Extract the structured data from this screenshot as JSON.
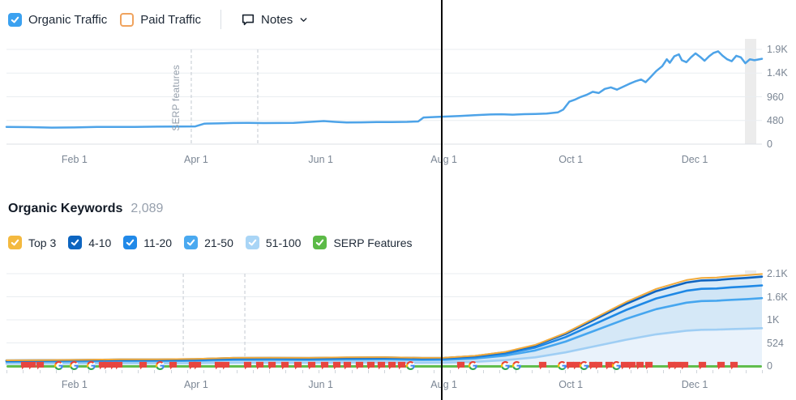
{
  "header_legend": {
    "organic_traffic": {
      "label": "Organic Traffic",
      "color": "#3ba1f0",
      "checked": true
    },
    "paid_traffic": {
      "label": "Paid Traffic",
      "color": "#f0a35e",
      "checked": false
    },
    "notes": {
      "label": "Notes"
    }
  },
  "keywords_header": {
    "title": "Organic Keywords",
    "count": "2,089"
  },
  "keywords_legend": {
    "items": [
      {
        "label": "Top 3",
        "color": "#f4b93f",
        "checked": true
      },
      {
        "label": "4-10",
        "color": "#0d65c1",
        "checked": true
      },
      {
        "label": "11-20",
        "color": "#2189e8",
        "checked": true
      },
      {
        "label": "21-50",
        "color": "#4aa9f0",
        "checked": true
      },
      {
        "label": "51-100",
        "color": "#a9d5f6",
        "checked": true
      },
      {
        "label": "SERP Features",
        "color": "#5cba47",
        "checked": true
      }
    ]
  },
  "chart_data": [
    {
      "id": "organic_traffic_trend",
      "type": "line",
      "title": "Organic Traffic",
      "x_ticks": [
        "Feb 1",
        "Apr 1",
        "Jun 1",
        "Aug 1",
        "Oct 1",
        "Dec 1"
      ],
      "y_ticks": [
        "1.9K",
        "1.4K",
        "960",
        "480",
        "0"
      ],
      "ylim": [
        0,
        1920
      ],
      "grid": true,
      "annotations": {
        "serp_features_label": "SERP features"
      },
      "series": [
        {
          "name": "Organic Traffic",
          "color": "#4da3e8",
          "x": [
            0,
            0.03,
            0.06,
            0.09,
            0.12,
            0.15,
            0.17,
            0.2,
            0.23,
            0.25,
            0.262,
            0.28,
            0.3,
            0.32,
            0.34,
            0.36,
            0.38,
            0.4,
            0.42,
            0.435,
            0.45,
            0.47,
            0.49,
            0.51,
            0.53,
            0.545,
            0.552,
            0.57,
            0.58,
            0.6,
            0.62,
            0.64,
            0.655,
            0.67,
            0.685,
            0.7,
            0.715,
            0.73,
            0.737,
            0.745,
            0.752,
            0.76,
            0.768,
            0.776,
            0.784,
            0.792,
            0.8,
            0.808,
            0.816,
            0.824,
            0.832,
            0.84,
            0.846,
            0.852,
            0.86,
            0.868,
            0.874,
            0.878,
            0.884,
            0.89,
            0.894,
            0.9,
            0.906,
            0.912,
            0.918,
            0.924,
            0.93,
            0.936,
            0.942,
            0.948,
            0.954,
            0.96,
            0.966,
            0.972,
            0.978,
            0.984,
            0.99,
            1.0
          ],
          "values": [
            350,
            345,
            335,
            338,
            348,
            350,
            348,
            355,
            358,
            360,
            415,
            420,
            428,
            430,
            426,
            428,
            432,
            450,
            468,
            452,
            438,
            442,
            446,
            448,
            452,
            460,
            540,
            552,
            558,
            570,
            588,
            600,
            606,
            598,
            608,
            612,
            618,
            645,
            700,
            860,
            900,
            955,
            1000,
            1060,
            1035,
            1120,
            1150,
            1105,
            1160,
            1220,
            1270,
            1310,
            1255,
            1350,
            1480,
            1580,
            1720,
            1650,
            1780,
            1820,
            1700,
            1660,
            1760,
            1840,
            1770,
            1690,
            1780,
            1850,
            1880,
            1790,
            1720,
            1680,
            1790,
            1760,
            1640,
            1720,
            1700,
            1730
          ]
        }
      ]
    },
    {
      "id": "organic_keywords_trend",
      "type": "area",
      "stacked": true,
      "title": "Organic Keywords",
      "total": 2089,
      "x_ticks": [
        "Feb 1",
        "Apr 1",
        "Jun 1",
        "Aug 1",
        "Oct 1",
        "Dec 1"
      ],
      "y_ticks": [
        "2.1K",
        "1.6K",
        "1K",
        "524",
        "0"
      ],
      "ylim": [
        0,
        2096
      ],
      "grid": true,
      "x": [
        0,
        0.05,
        0.1,
        0.15,
        0.2,
        0.25,
        0.3,
        0.35,
        0.4,
        0.45,
        0.5,
        0.55,
        0.58,
        0.62,
        0.66,
        0.7,
        0.74,
        0.78,
        0.82,
        0.86,
        0.9,
        0.92,
        0.94,
        0.96,
        0.98,
        1.0
      ],
      "series": [
        {
          "name": "Top 3",
          "color": "#f2ab3c",
          "fill": "#ddeefa",
          "values": [
            4,
            4,
            4,
            4,
            4,
            5,
            5,
            6,
            5,
            6,
            6,
            5,
            6,
            7,
            9,
            14,
            22,
            32,
            42,
            51,
            57,
            58,
            58,
            59,
            60,
            61
          ]
        },
        {
          "name": "4-10",
          "color": "#0f64c0",
          "fill": "#d8eaf8",
          "values": [
            12,
            13,
            13,
            14,
            14,
            15,
            18,
            18,
            18,
            19,
            19,
            18,
            18,
            22,
            30,
            46,
            71,
            105,
            138,
            166,
            185,
            190,
            191,
            194,
            196,
            198
          ]
        },
        {
          "name": "11-20",
          "color": "#1e88e5",
          "fill": "#d0e5f6",
          "values": [
            18,
            19,
            19,
            21,
            21,
            22,
            26,
            26,
            26,
            27,
            28,
            26,
            26,
            32,
            44,
            67,
            104,
            153,
            202,
            243,
            271,
            278,
            279,
            284,
            286,
            290
          ]
        },
        {
          "name": "21-50",
          "color": "#46a6ef",
          "fill": "#d5e8f7",
          "values": [
            42,
            44,
            46,
            49,
            49,
            52,
            60,
            62,
            60,
            64,
            65,
            60,
            62,
            75,
            104,
            156,
            245,
            359,
            473,
            571,
            636,
            652,
            655,
            665,
            672,
            681
          ]
        },
        {
          "name": "51-100",
          "color": "#9fcef4",
          "fill": "#e9f2fb",
          "values": [
            53,
            55,
            58,
            62,
            62,
            66,
            76,
            78,
            76,
            80,
            82,
            76,
            78,
            95,
            132,
            197,
            308,
            452,
            596,
            719,
            801,
            822,
            826,
            838,
            847,
            859
          ]
        }
      ]
    }
  ],
  "markers": {
    "line_color": "#61bd4d",
    "flag_color": "#e8453f",
    "items": [
      {
        "t": "flag",
        "x": 0.024
      },
      {
        "t": "flag",
        "x": 0.034
      },
      {
        "t": "flag",
        "x": 0.045
      },
      {
        "t": "g",
        "x": 0.069
      },
      {
        "t": "g",
        "x": 0.09
      },
      {
        "t": "g",
        "x": 0.112
      },
      {
        "t": "flag",
        "x": 0.127
      },
      {
        "t": "flag",
        "x": 0.134
      },
      {
        "t": "flag",
        "x": 0.142
      },
      {
        "t": "flag",
        "x": 0.149
      },
      {
        "t": "flag",
        "x": 0.181
      },
      {
        "t": "g",
        "x": 0.203
      },
      {
        "t": "flag",
        "x": 0.22
      },
      {
        "t": "flag",
        "x": 0.246
      },
      {
        "t": "flag",
        "x": 0.253
      },
      {
        "t": "flag",
        "x": 0.281
      },
      {
        "t": "flag",
        "x": 0.29
      },
      {
        "t": "flag",
        "x": 0.319
      },
      {
        "t": "flag",
        "x": 0.335
      },
      {
        "t": "flag",
        "x": 0.351
      },
      {
        "t": "flag",
        "x": 0.369
      },
      {
        "t": "flag",
        "x": 0.386
      },
      {
        "t": "flag",
        "x": 0.404
      },
      {
        "t": "flag",
        "x": 0.421
      },
      {
        "t": "flag",
        "x": 0.437
      },
      {
        "t": "flag",
        "x": 0.451
      },
      {
        "t": "flag",
        "x": 0.467
      },
      {
        "t": "flag",
        "x": 0.482
      },
      {
        "t": "flag",
        "x": 0.496
      },
      {
        "t": "flag",
        "x": 0.51
      },
      {
        "t": "flag",
        "x": 0.523
      },
      {
        "t": "g",
        "x": 0.535
      },
      {
        "t": "flag",
        "x": 0.601
      },
      {
        "t": "g",
        "x": 0.617
      },
      {
        "t": "g",
        "x": 0.66
      },
      {
        "t": "g",
        "x": 0.675
      },
      {
        "t": "flag",
        "x": 0.71
      },
      {
        "t": "g",
        "x": 0.735
      },
      {
        "t": "flag",
        "x": 0.746
      },
      {
        "t": "flag",
        "x": 0.755
      },
      {
        "t": "g",
        "x": 0.764
      },
      {
        "t": "flag",
        "x": 0.776
      },
      {
        "t": "flag",
        "x": 0.784
      },
      {
        "t": "flag",
        "x": 0.798
      },
      {
        "t": "g",
        "x": 0.807
      },
      {
        "t": "flag",
        "x": 0.818
      },
      {
        "t": "flag",
        "x": 0.828
      },
      {
        "t": "flag",
        "x": 0.839
      },
      {
        "t": "flag",
        "x": 0.85
      },
      {
        "t": "flag",
        "x": 0.88
      },
      {
        "t": "flag",
        "x": 0.888
      },
      {
        "t": "flag",
        "x": 0.898
      },
      {
        "t": "flag",
        "x": 0.921
      },
      {
        "t": "flag",
        "x": 0.946
      },
      {
        "t": "flag",
        "x": 0.963
      }
    ]
  }
}
